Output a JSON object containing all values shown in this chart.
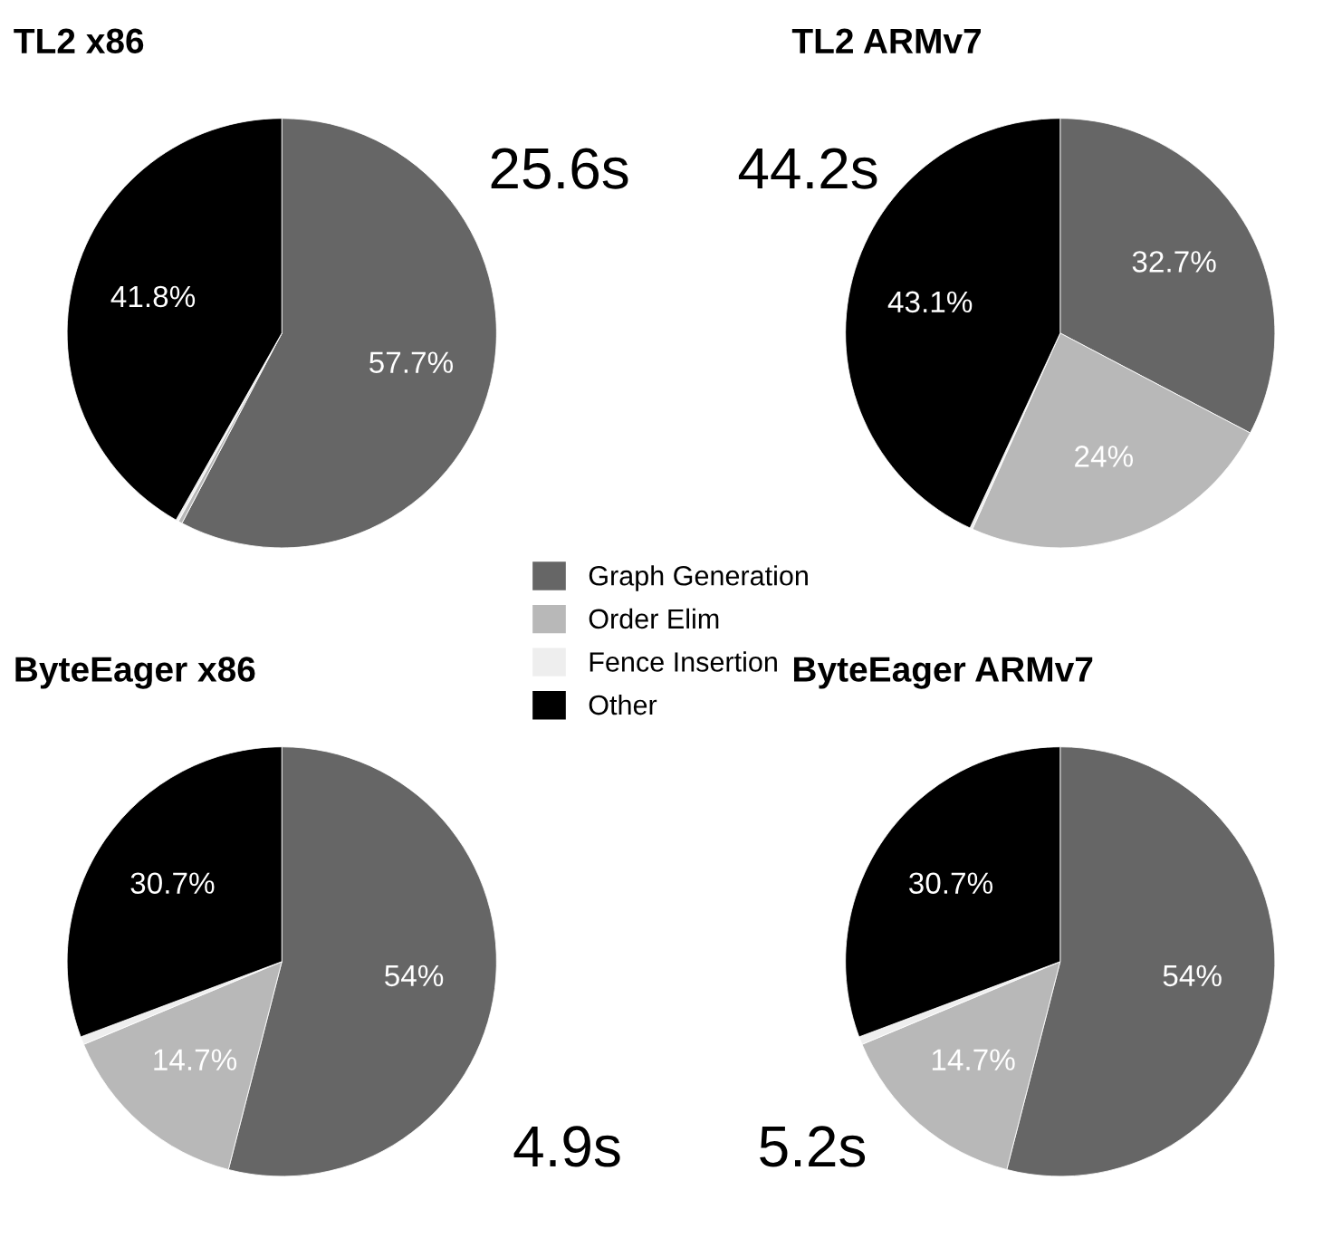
{
  "chart_data": [
    {
      "type": "pie",
      "title": "TL2 x86",
      "categories": [
        "Graph Generation",
        "Order Elim",
        "Fence Insertion",
        "Other"
      ],
      "values": [
        57.7,
        0.3,
        0.2,
        41.8
      ],
      "colors": [
        "#666666",
        "#b8b8b8",
        "#eeeeee",
        "#000000"
      ],
      "value_labels": [
        "57.7%",
        null,
        null,
        "41.8%"
      ],
      "annotations": [
        "25.6s"
      ],
      "legend": "bottom right"
    },
    {
      "type": "pie",
      "title": "TL2 ARMv7",
      "categories": [
        null,
        null,
        null,
        null
      ],
      "values": [
        32.7,
        24,
        0.2,
        43.1
      ],
      "colors": [
        "#666666",
        "#b8b8b8",
        "#eeeeee",
        "#000000"
      ],
      "value_labels": [
        "32.7%",
        "24%",
        null,
        "43.1%"
      ],
      "annotations": [
        "44.2s"
      ]
    },
    {
      "type": "pie",
      "title": "ByteEager x86",
      "categories": [
        null,
        null,
        null,
        null
      ],
      "values": [
        54,
        14.7,
        0.6,
        30.7
      ],
      "colors": [
        "#666666",
        "#b8b8b8",
        "#eeeeee",
        "#000000"
      ],
      "value_labels": [
        "54%",
        "14.7%",
        null,
        "30.7%"
      ],
      "annotations": [
        "4.9s"
      ]
    },
    {
      "type": "pie",
      "title": "ByteEager ARMv7",
      "categories": [
        null,
        null,
        null,
        null
      ],
      "values": [
        54,
        14.7,
        0.6,
        30.7
      ],
      "colors": [
        "#666666",
        "#b8b8b8",
        "#eeeeee",
        "#000000"
      ],
      "value_labels": [
        "54%",
        "14.7%",
        null,
        "30.7%"
      ],
      "annotations": [
        "5.2s"
      ]
    }
  ]
}
